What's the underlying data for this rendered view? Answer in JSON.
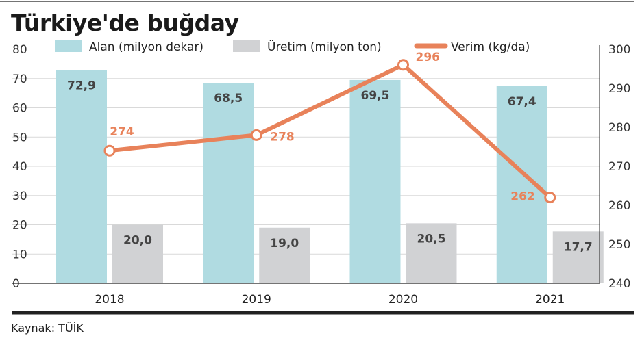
{
  "chart_data": {
    "type": "bar",
    "title": "Türkiye'de buğday",
    "source": "Kaynak: TÜİK",
    "categories": [
      "2018",
      "2019",
      "2020",
      "2021"
    ],
    "series": [
      {
        "name": "Alan (milyon dekar)",
        "kind": "bar",
        "axis": "left",
        "color": "#b0dbe1",
        "values": [
          72.9,
          68.5,
          69.5,
          67.4
        ],
        "labels": [
          "72,9",
          "68,5",
          "69,5",
          "67,4"
        ]
      },
      {
        "name": "Üretim (milyon ton)",
        "kind": "bar",
        "axis": "left",
        "color": "#d1d2d4",
        "values": [
          20.0,
          19.0,
          20.5,
          17.7
        ],
        "labels": [
          "20,0",
          "19,0",
          "20,5",
          "17,7"
        ]
      },
      {
        "name": "Verim (kg/da)",
        "kind": "line",
        "axis": "right",
        "color": "#e8825a",
        "values": [
          274,
          278,
          296,
          262
        ],
        "labels": [
          "274",
          "278",
          "296",
          "262"
        ]
      }
    ],
    "y_left": {
      "min": 0,
      "max": 80,
      "ticks": [
        "0",
        "10",
        "20",
        "30",
        "40",
        "50",
        "60",
        "70",
        "80"
      ]
    },
    "y_right": {
      "min": 240,
      "max": 300,
      "ticks": [
        "240",
        "250",
        "260",
        "270",
        "280",
        "290",
        "300"
      ]
    },
    "grid": true,
    "legend_position": "top"
  }
}
